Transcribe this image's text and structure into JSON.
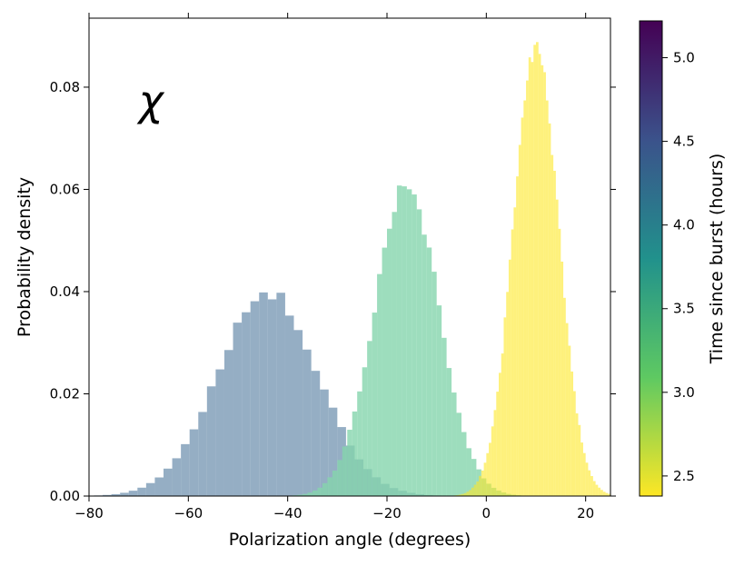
{
  "chart_data": {
    "type": "histogram",
    "xlabel": "Polarization angle (degrees)",
    "ylabel": "Probability density",
    "xlim": [
      -80,
      25
    ],
    "ylim": [
      0,
      0.0935
    ],
    "xticks": [
      -80,
      -60,
      -40,
      -20,
      0,
      20
    ],
    "xtick_labels": [
      "−80",
      "−60",
      "−40",
      "−20",
      "0",
      "20"
    ],
    "yticks": [
      0,
      0.02,
      0.04,
      0.06,
      0.08
    ],
    "ytick_labels": [
      "0.00",
      "0.02",
      "0.04",
      "0.06",
      "0.08"
    ],
    "annotation": "χ",
    "grid": false,
    "colorbar": {
      "label": "Time since burst (hours)",
      "range": [
        2.38,
        5.22
      ],
      "ticks": [
        2.5,
        3.0,
        3.5,
        4.0,
        4.5,
        5.0
      ],
      "tick_labels": [
        "2.5",
        "3.0",
        "3.5",
        "4.0",
        "4.5",
        "5.0"
      ],
      "colormap": "viridis",
      "stops": [
        "#fde725",
        "#5ec962",
        "#21918c",
        "#3b528b",
        "#440154"
      ]
    },
    "series": [
      {
        "mean": -44,
        "std": 10,
        "peak": 0.04,
        "bin_width": 1.75,
        "time_hours": 4.55,
        "color": "#7293b0",
        "opacity": 0.75
      },
      {
        "mean": -16,
        "std": 6.5,
        "peak": 0.061,
        "bin_width": 1.0,
        "time_hours": 3.1,
        "color": "#85d5ad",
        "opacity": 0.8
      },
      {
        "mean": 10,
        "std": 4.5,
        "peak": 0.089,
        "bin_width": 0.5,
        "time_hours": 2.4,
        "color": "#fde725",
        "opacity": 0.6
      }
    ]
  }
}
